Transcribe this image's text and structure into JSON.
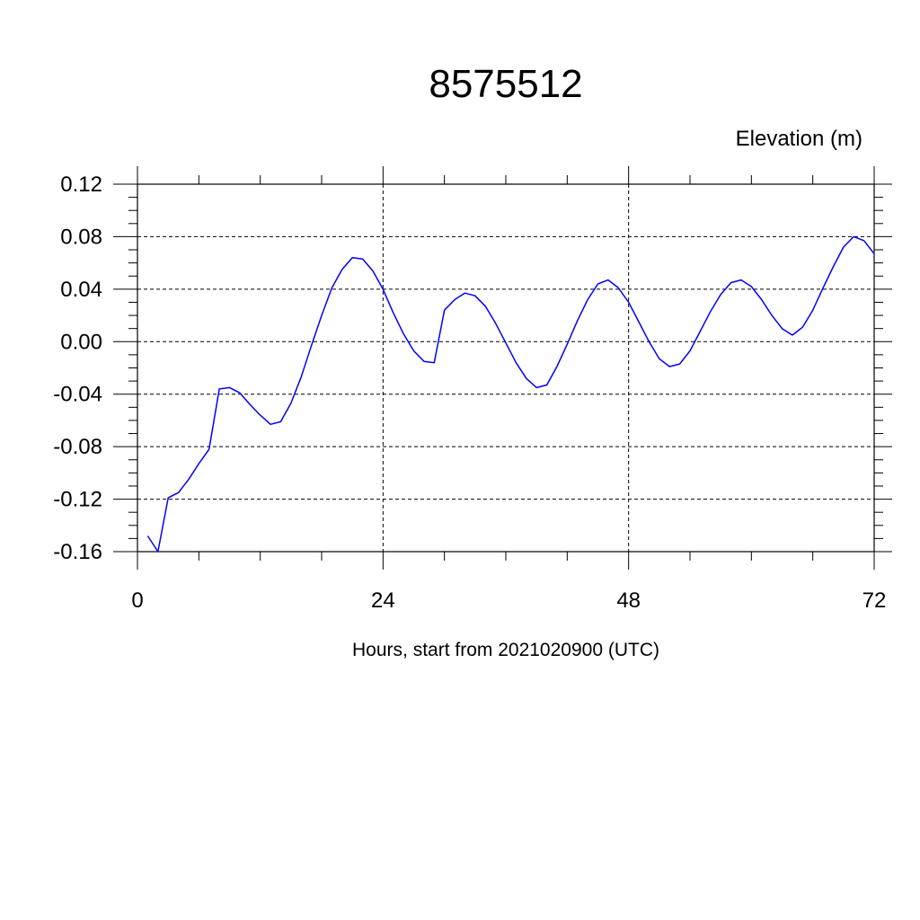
{
  "chart_data": {
    "type": "line",
    "title": "8575512",
    "subtitle": "Elevation (m)",
    "xlabel": "Hours, start from 2021020900 (UTC)",
    "ylabel": "",
    "xlim": [
      0,
      72
    ],
    "ylim": [
      -0.16,
      0.12
    ],
    "x_ticks": [
      0,
      24,
      48,
      72
    ],
    "x_tick_labels": [
      "0",
      "24",
      "48",
      "72"
    ],
    "y_ticks": [
      0.12,
      0.08,
      0.04,
      0.0,
      -0.04,
      -0.08,
      -0.12,
      -0.16
    ],
    "y_tick_labels": [
      "0.12",
      "0.08",
      "0.04",
      "0.00",
      "-0.04",
      "-0.08",
      "-0.12",
      "-0.16"
    ],
    "grid": true,
    "series": [
      {
        "color": "#0000ff",
        "x": [
          1,
          2,
          3,
          4,
          5,
          6,
          7,
          8,
          9,
          10,
          11,
          12,
          13,
          14,
          15,
          16,
          17,
          18,
          19,
          20,
          21,
          22,
          23,
          24,
          25,
          26,
          27,
          28,
          29,
          30,
          31,
          32,
          33,
          34,
          35,
          36,
          37,
          38,
          39,
          40,
          41,
          42,
          43,
          44,
          45,
          46,
          47,
          48,
          49,
          50,
          51,
          52,
          53,
          54,
          55,
          56,
          57,
          58,
          59,
          60,
          61,
          62,
          63,
          64,
          65,
          66,
          67,
          68,
          69,
          70,
          71,
          72
        ],
        "y": [
          -0.148,
          -0.16,
          -0.119,
          -0.115,
          -0.105,
          -0.093,
          -0.082,
          -0.036,
          -0.035,
          -0.039,
          -0.048,
          -0.056,
          -0.063,
          -0.061,
          -0.047,
          -0.027,
          -0.003,
          0.02,
          0.041,
          0.055,
          0.064,
          0.063,
          0.054,
          0.04,
          0.022,
          0.006,
          -0.007,
          -0.015,
          -0.016,
          0.024,
          0.032,
          0.037,
          0.035,
          0.027,
          0.014,
          -0.001,
          -0.016,
          -0.028,
          -0.035,
          -0.033,
          -0.019,
          -0.002,
          0.016,
          0.032,
          0.044,
          0.047,
          0.041,
          0.03,
          0.015,
          0.0,
          -0.013,
          -0.019,
          -0.017,
          -0.007,
          0.008,
          0.023,
          0.036,
          0.045,
          0.047,
          0.042,
          0.032,
          0.02,
          0.01,
          0.005,
          0.011,
          0.024,
          0.041,
          0.057,
          0.072,
          0.08,
          0.077,
          0.067
        ]
      }
    ]
  }
}
